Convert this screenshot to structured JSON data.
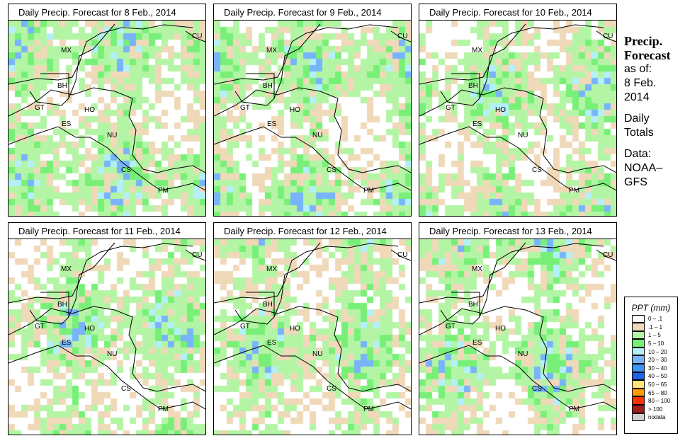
{
  "panels": [
    {
      "title": "Daily Precip. Forecast for  8 Feb., 2014",
      "seed": 1
    },
    {
      "title": "Daily Precip. Forecast for  9 Feb., 2014",
      "seed": 2
    },
    {
      "title": "Daily Precip. Forecast for  10 Feb., 2014",
      "seed": 3
    },
    {
      "title": "Daily Precip. Forecast for  11 Feb., 2014",
      "seed": 4
    },
    {
      "title": "Daily Precip. Forecast for  12 Feb., 2014",
      "seed": 5
    },
    {
      "title": "Daily Precip. Forecast for  13 Feb., 2014",
      "seed": 6
    }
  ],
  "country_labels": [
    "MX",
    "CU",
    "BH",
    "GT",
    "HO",
    "ES",
    "NU",
    "CS",
    "PM"
  ],
  "side": {
    "title1": "Precip.",
    "title2": "Forecast",
    "asof": "as of:",
    "date1": "8 Feb.",
    "date2": "2014",
    "daily1": "Daily",
    "daily2": "Totals",
    "data1": "Data:",
    "data2": "NOAA–",
    "data3": "GFS"
  },
  "legend": {
    "title": "PPT (mm)",
    "items": [
      {
        "label": "0 – .1",
        "color": "#ffffff"
      },
      {
        "label": ".1 – 1",
        "color": "#efd9b9"
      },
      {
        "label": "1 – 5",
        "color": "#b4f5a5"
      },
      {
        "label": "5 – 10",
        "color": "#78f078"
      },
      {
        "label": "10 – 20",
        "color": "#b4f0fa"
      },
      {
        "label": "20 – 30",
        "color": "#78b4fa"
      },
      {
        "label": "30 – 40",
        "color": "#3c96f5"
      },
      {
        "label": "40 – 50",
        "color": "#1e64e6"
      },
      {
        "label": "50 – 65",
        "color": "#ffe678"
      },
      {
        "label": "65 – 80",
        "color": "#ffa000"
      },
      {
        "label": "80 – 100",
        "color": "#ff3200"
      },
      {
        "label": "> 100",
        "color": "#a01e1e"
      },
      {
        "label": "nodata",
        "color": "#d2d2d2"
      }
    ]
  }
}
